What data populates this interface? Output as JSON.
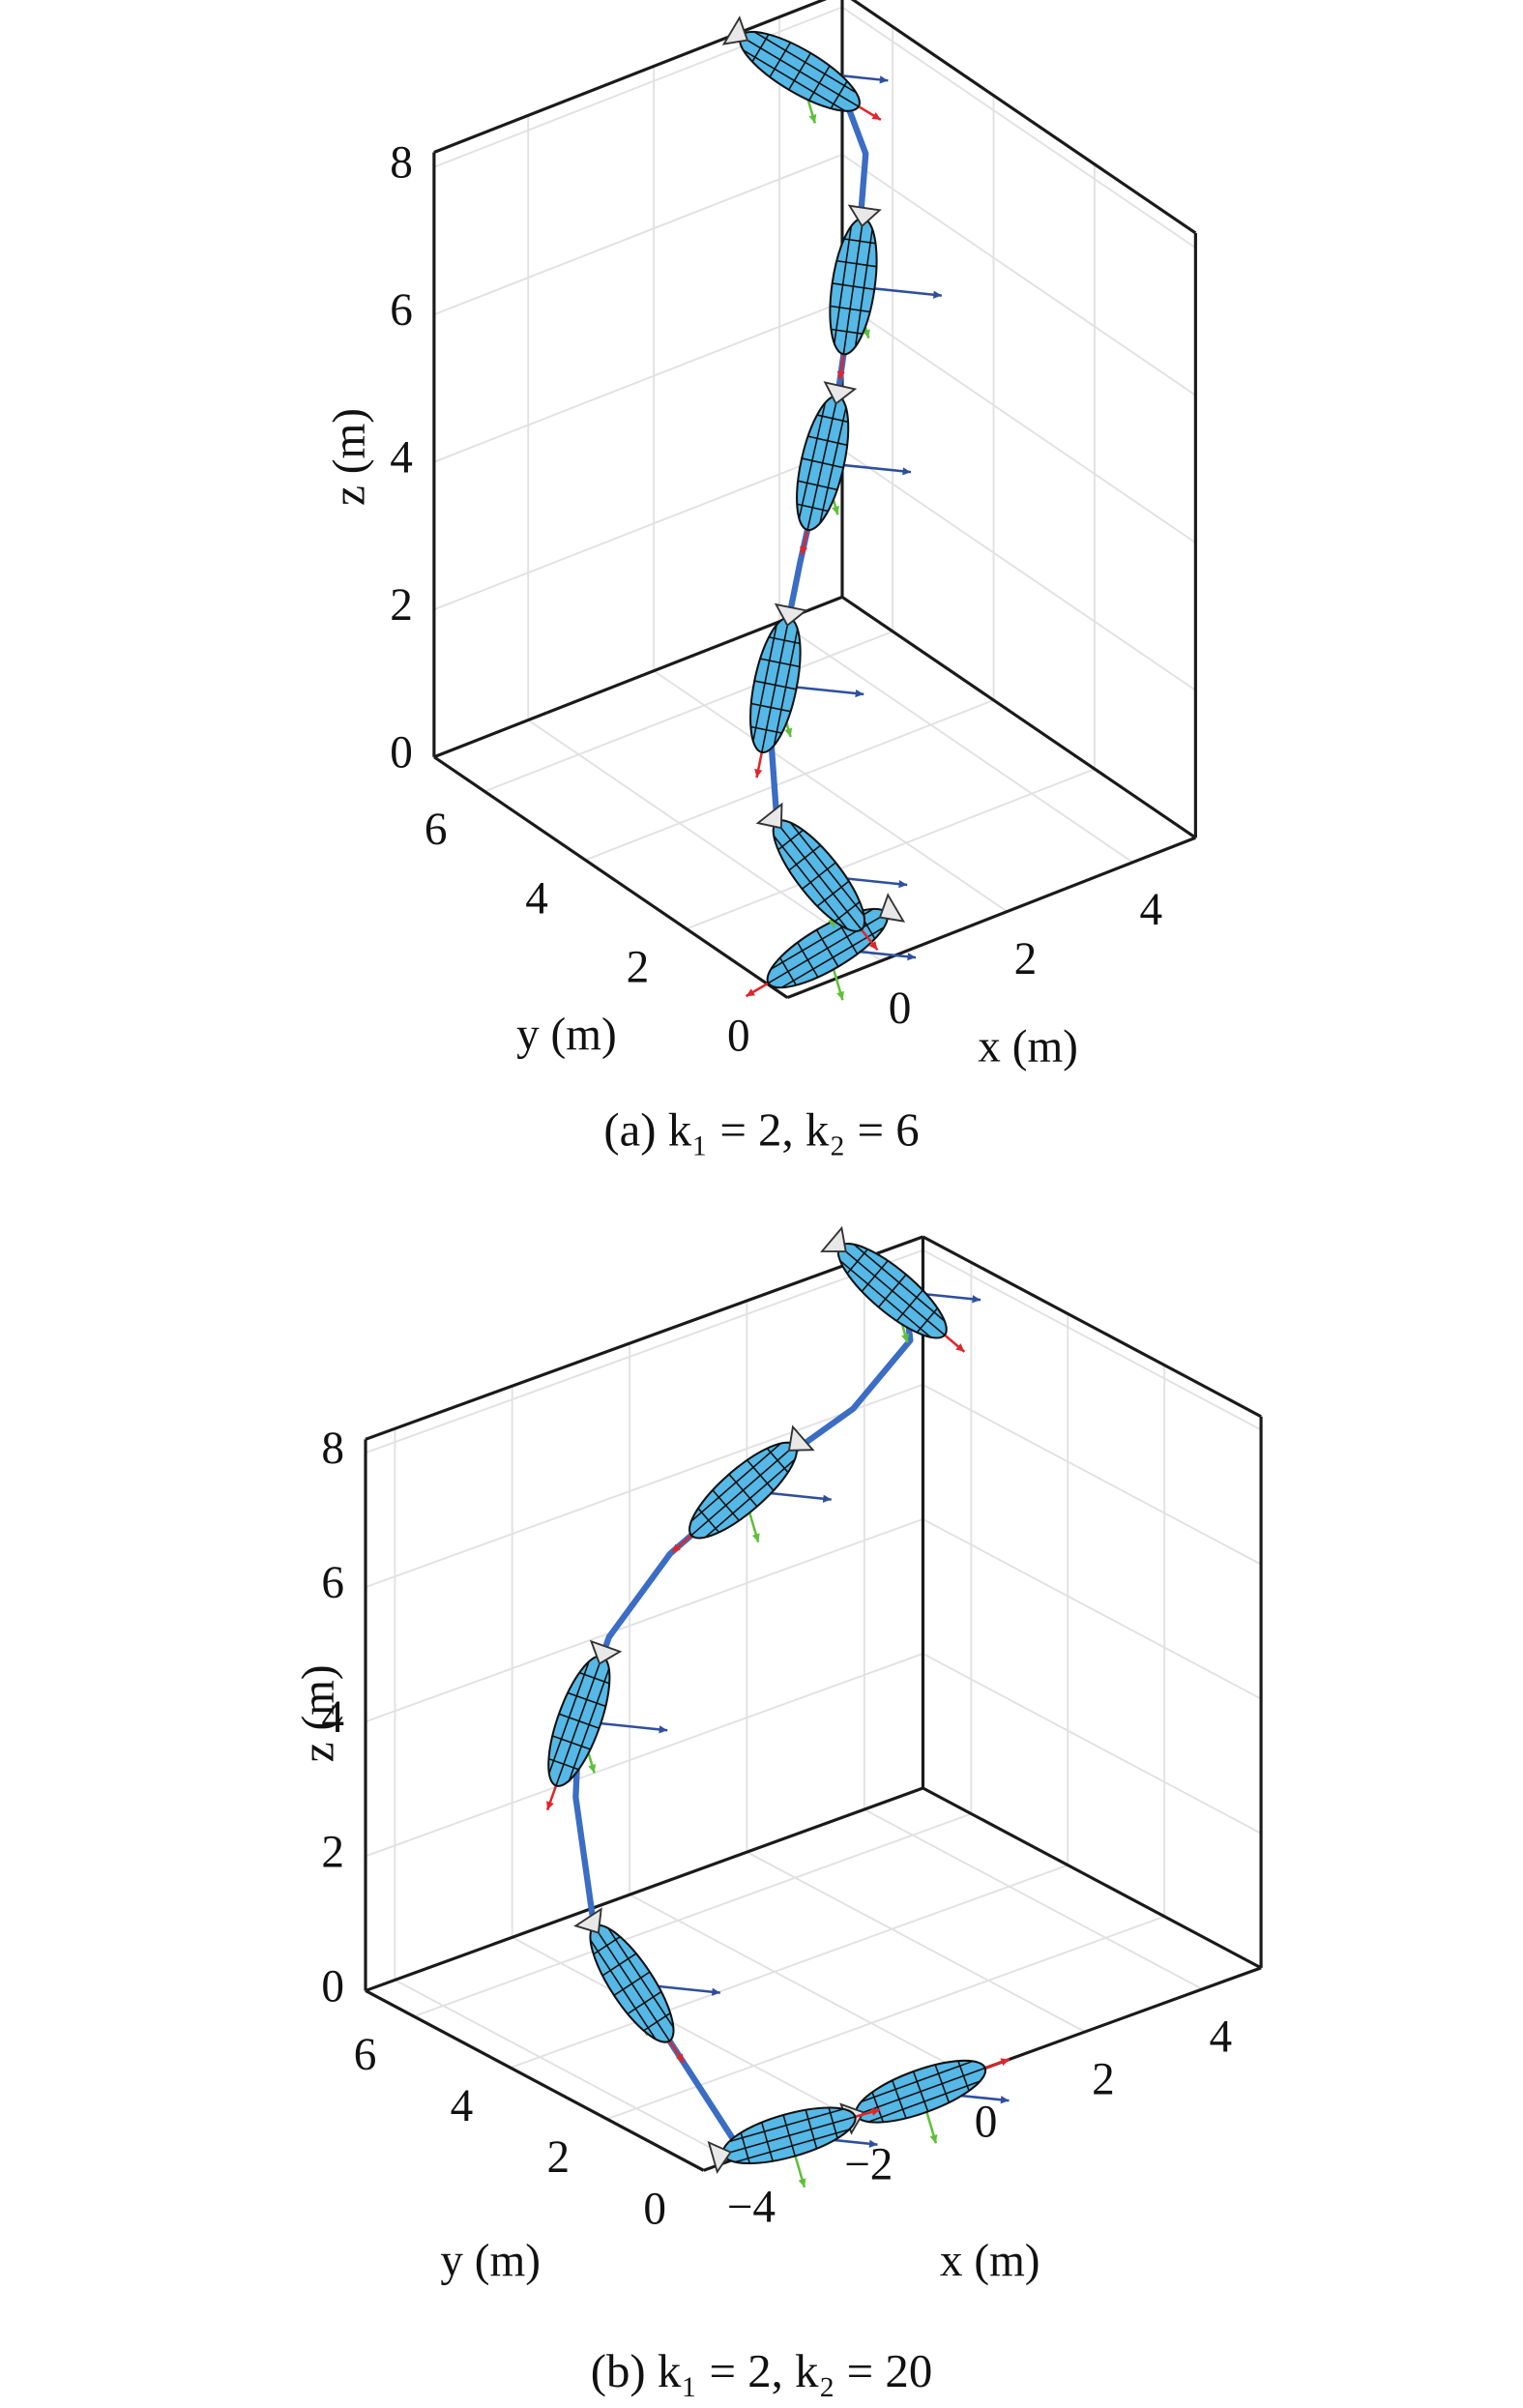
{
  "chart_data": [
    {
      "type": "line3d",
      "caption": "(a) k₁ = 2, k₂ = 6",
      "xlabel": "x (m)",
      "ylabel": "y (m)",
      "zlabel": "z (m)",
      "xlim": [
        -1.5,
        5
      ],
      "ylim": [
        0,
        7
      ],
      "zlim": [
        0,
        8.2
      ],
      "xticks": [
        0,
        2,
        4
      ],
      "yticks": [
        0,
        2,
        4,
        6
      ],
      "zticks": [
        0,
        2,
        4,
        6,
        8
      ],
      "grid": true,
      "color": "#3a6dc3",
      "body_color": "#55b8e6",
      "x": [
        -0.99,
        0.23,
        -0.54,
        -0.1,
        1.03,
        2.38,
        2.99,
        3.5,
        3.63,
        3.36
      ],
      "y": [
        0.5,
        0.7,
        1.4,
        2.1,
        2.9,
        3.83,
        4.2,
        4.67,
        5.24,
        6.4
      ],
      "z": [
        0,
        0.03,
        1.4,
        2.38,
        3.69,
        5.08,
        6.56,
        7.6,
        8.04,
        8.2
      ]
    },
    {
      "type": "line3d",
      "caption": "(b) k₁ = 2, k₂ = 20",
      "xlabel": "x (m)",
      "ylabel": "y (m)",
      "zlabel": "z (m)",
      "xlim": [
        -4.5,
        5
      ],
      "ylim": [
        0,
        7
      ],
      "zlim": [
        0,
        8.2
      ],
      "xticks": [
        {
          "value": -4,
          "label": "−4"
        },
        {
          "value": -2,
          "label": "−2"
        },
        0,
        2,
        4
      ],
      "yticks": [
        0,
        2,
        4,
        6
      ],
      "zticks": [
        0,
        2,
        4,
        6,
        8
      ],
      "grid": true,
      "color": "#3a6dc3",
      "body_color": "#55b8e6",
      "x": [
        -0.8,
        -2.2,
        -3.8,
        -2.9,
        -2.23,
        -1.84,
        -1.93,
        -1.6,
        -0.65,
        0.73,
        2.06,
        3.22,
        3.58,
        3.85
      ],
      "y": [
        0,
        0,
        0.1,
        2.64,
        5.03,
        5.88,
        5.7,
        5.48,
        5.37,
        5.16,
        4.88,
        5.1,
        5.63,
        6.89
      ],
      "z": [
        0,
        0,
        0.05,
        0.4,
        1.0,
        2.46,
        3.69,
        4.92,
        5.9,
        6.72,
        7.38,
        7.95,
        8.2,
        8.2
      ]
    }
  ]
}
